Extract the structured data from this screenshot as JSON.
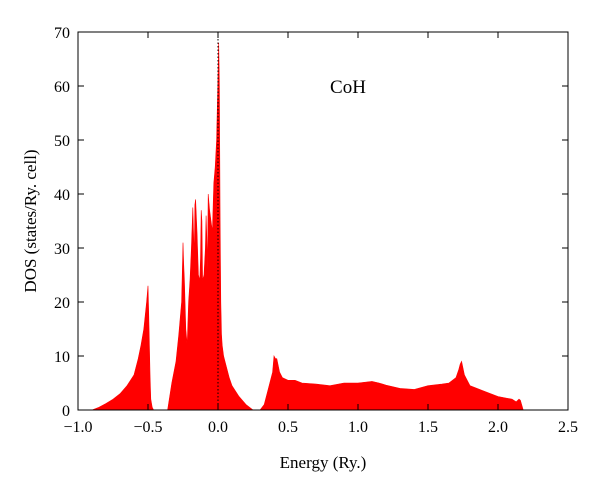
{
  "chart_data": {
    "type": "area",
    "title": "",
    "xlabel": "Energy (Ry.)",
    "ylabel": "DOS (states/Ry. cell)",
    "xlim": [
      -1.0,
      2.5
    ],
    "ylim": [
      0,
      70
    ],
    "x_ticks": [
      -1.0,
      -0.5,
      0.0,
      0.5,
      1.0,
      1.5,
      2.0,
      2.5
    ],
    "x_tick_labels": [
      "−1.0",
      "−0.5",
      "0.0",
      "0.5",
      "1.0",
      "1.5",
      "2.0",
      "2.5"
    ],
    "y_ticks": [
      0,
      10,
      20,
      30,
      40,
      50,
      60,
      70
    ],
    "y_tick_labels": [
      "0",
      "10",
      "20",
      "30",
      "40",
      "50",
      "60",
      "70"
    ],
    "grid": false,
    "annotation": "CoH",
    "fermi_level": 0.0,
    "fill_color": "#ff0000",
    "fermi_line_color": "#000000",
    "series": [
      {
        "x": [
          -0.9,
          -0.85,
          -0.8,
          -0.75,
          -0.7,
          -0.65,
          -0.6,
          -0.57,
          -0.55,
          -0.53,
          -0.51,
          -0.5,
          -0.495,
          -0.49,
          -0.485,
          -0.48,
          -0.47,
          -0.46,
          -0.45,
          -0.36,
          -0.33,
          -0.3,
          -0.28,
          -0.26,
          -0.25,
          -0.245,
          -0.24,
          -0.23,
          -0.22,
          -0.21,
          -0.2,
          -0.19,
          -0.18,
          -0.175,
          -0.17,
          -0.165,
          -0.16,
          -0.15,
          -0.14,
          -0.13,
          -0.125,
          -0.12,
          -0.115,
          -0.11,
          -0.1,
          -0.09,
          -0.085,
          -0.08,
          -0.075,
          -0.07,
          -0.06,
          -0.05,
          -0.04,
          -0.03,
          -0.02,
          -0.01,
          0.0,
          0.005,
          0.01,
          0.015,
          0.02,
          0.025,
          0.03,
          0.04,
          0.05,
          0.06,
          0.08,
          0.1,
          0.15,
          0.2,
          0.25,
          0.3,
          0.33,
          0.36,
          0.39,
          0.4,
          0.41,
          0.42,
          0.44,
          0.46,
          0.5,
          0.55,
          0.6,
          0.7,
          0.8,
          0.9,
          1.0,
          1.1,
          1.15,
          1.2,
          1.3,
          1.4,
          1.5,
          1.6,
          1.65,
          1.7,
          1.72,
          1.73,
          1.74,
          1.76,
          1.8,
          1.9,
          2.0,
          2.1,
          2.13,
          2.15,
          2.16,
          2.18,
          2.2,
          2.3
        ],
        "values": [
          0,
          0.5,
          1.2,
          2.0,
          3.0,
          4.5,
          6.5,
          9.5,
          12.0,
          15.0,
          20.0,
          23.0,
          18.0,
          12.0,
          6.0,
          2.0,
          0.5,
          0,
          0,
          0,
          5.0,
          9.0,
          14.0,
          20.0,
          31.0,
          27.0,
          24.0,
          15.0,
          12.0,
          20.0,
          24.0,
          30.0,
          37.5,
          33.0,
          28.0,
          38.0,
          39.0,
          33.0,
          25.0,
          24.0,
          28.0,
          37.0,
          35.0,
          24.0,
          25.0,
          30.0,
          36.0,
          32.0,
          26.0,
          40.0,
          37.0,
          35.0,
          33.0,
          42.0,
          45.0,
          50.0,
          62.0,
          68.0,
          60.0,
          35.0,
          20.0,
          14.0,
          12.0,
          10.0,
          9.0,
          8.0,
          6.0,
          4.5,
          2.5,
          1.0,
          0,
          0,
          1.0,
          4.0,
          7.0,
          10.0,
          9.5,
          9.5,
          7.0,
          6.0,
          5.5,
          5.5,
          5.0,
          4.8,
          4.5,
          5.0,
          5.0,
          5.3,
          5.0,
          4.6,
          4.0,
          3.8,
          4.5,
          4.8,
          5.0,
          6.0,
          7.5,
          8.5,
          9.0,
          6.5,
          4.5,
          3.5,
          2.5,
          2.0,
          1.5,
          2.0,
          1.8,
          0,
          0,
          0
        ]
      }
    ]
  }
}
